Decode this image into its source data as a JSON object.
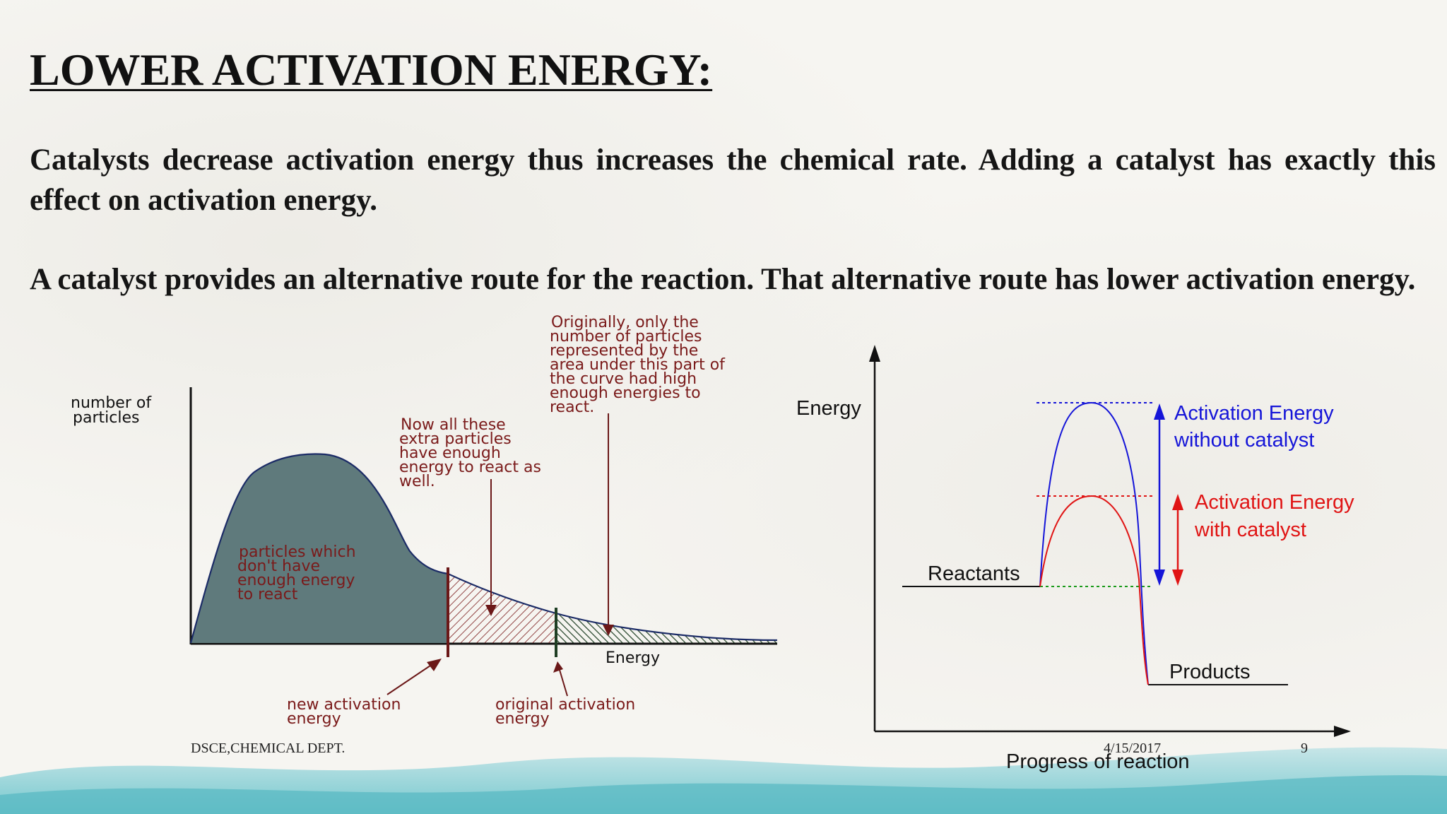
{
  "slide": {
    "title": "LOWER ACTIVATION ENERGY:",
    "paragraph1": "Catalysts decrease activation energy thus increases the chemical rate. Adding a catalyst has exactly this effect on activation energy.",
    "paragraph2": "A catalyst provides an alternative route for the reaction. That alternative route has lower activation energy."
  },
  "distribution_diagram": {
    "y_label_line1": "number of",
    "y_label_line2": "particles",
    "x_label": "Energy",
    "inside_label": [
      "particles which",
      "don't have",
      "enough energy",
      "to react"
    ],
    "callout_new": [
      "Now all these",
      "extra particles",
      "have enough",
      "energy to react as",
      "well."
    ],
    "callout_original": [
      "Originally, only the",
      "number of particles",
      "represented by the",
      "area under this part of",
      "the curve had high",
      "enough energies to",
      "react."
    ],
    "new_activation_label": [
      "new activation",
      "energy"
    ],
    "original_activation_label": [
      "original activation",
      "energy"
    ],
    "colors": {
      "curve_fill": "#5f7a7c",
      "text_red": "#7a1a1a",
      "new_line": "#6b1818",
      "orig_line": "#1f3f24"
    }
  },
  "energy_diagram": {
    "y_label": "Energy",
    "x_label": "Progress of reaction",
    "reactants_label": "Reactants",
    "products_label": "Products",
    "without_catalyst_line1": "Activation Energy",
    "without_catalyst_line2": "without catalyst",
    "with_catalyst_line1": "Activation Energy",
    "with_catalyst_line2": "with catalyst",
    "colors": {
      "without": "#1515d8",
      "with": "#e01414",
      "baseline": "#1a9a1a"
    }
  },
  "footer": {
    "department": "DSCE,CHEMICAL DEPT.",
    "date": "4/15/2017",
    "page": "9"
  }
}
